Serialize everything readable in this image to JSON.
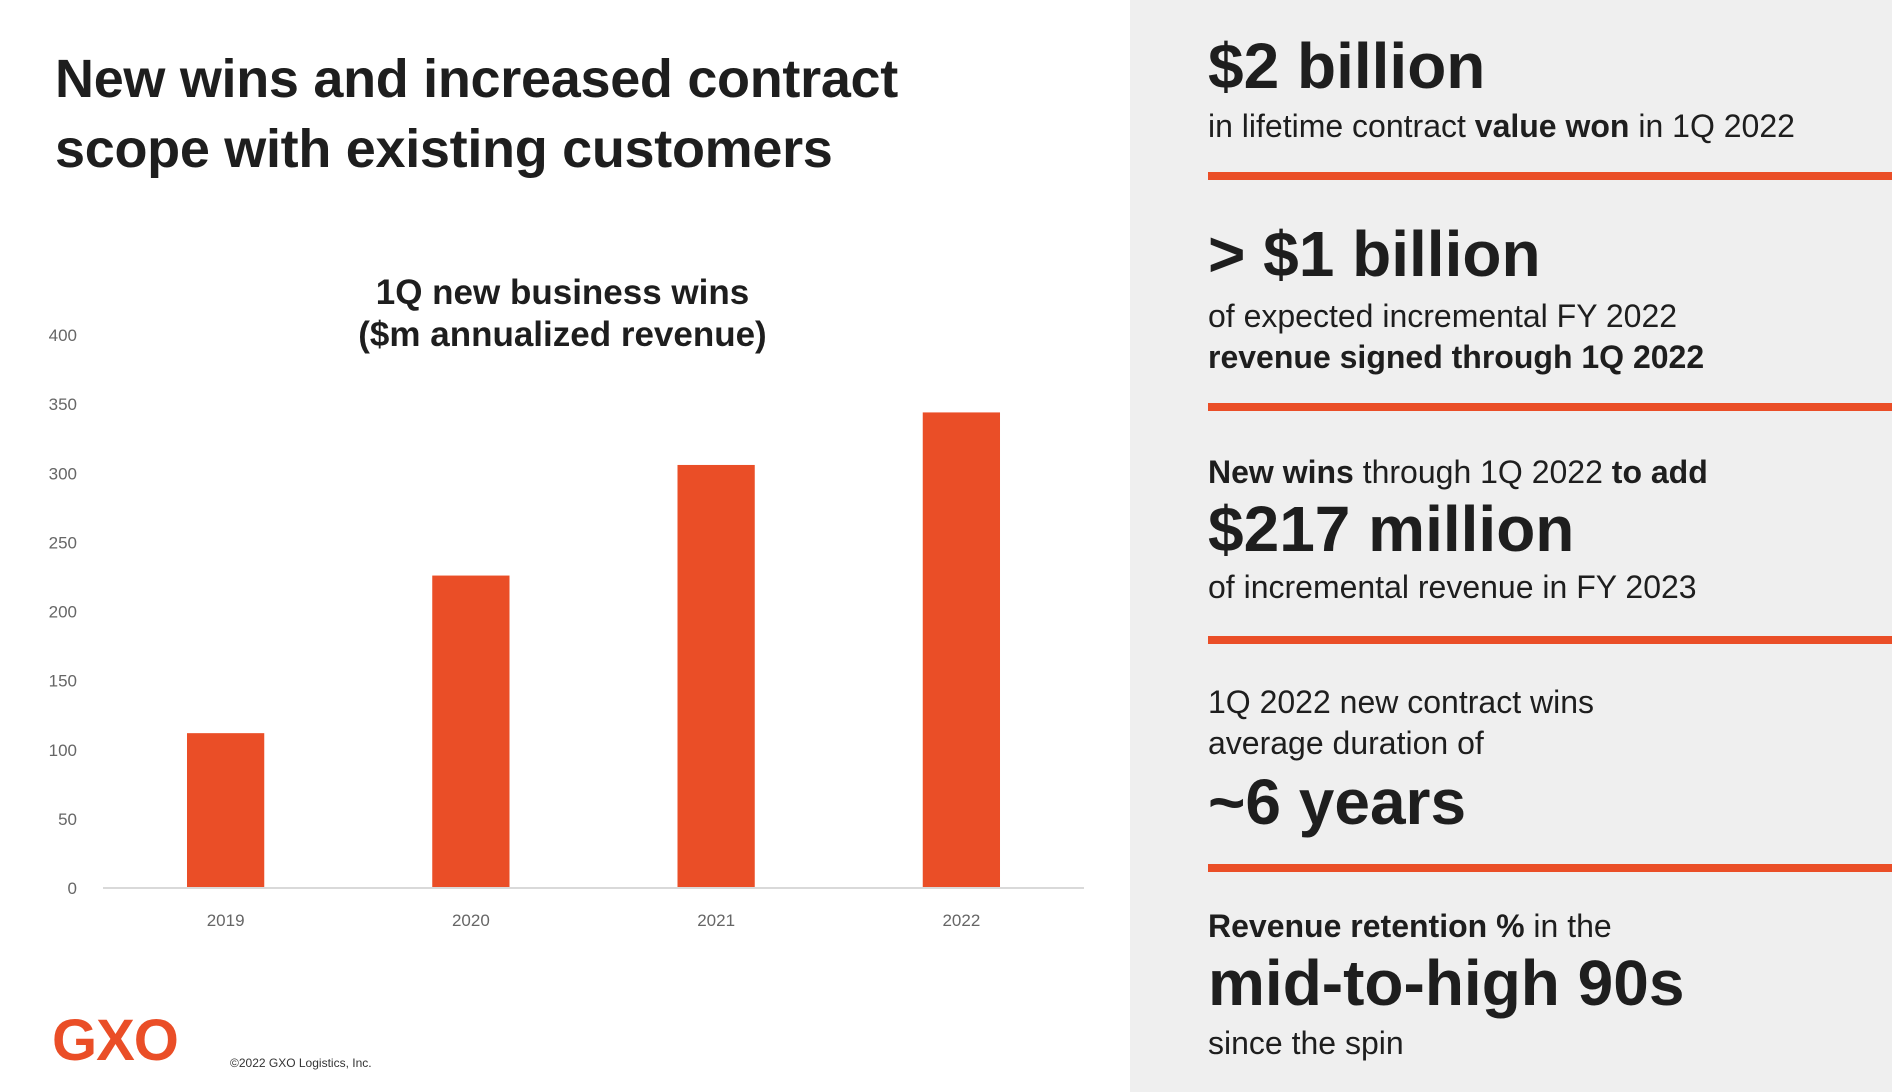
{
  "slide": {
    "title_lines": [
      "New wins and increased contract",
      "scope with existing customers"
    ],
    "logo_text": "GXO",
    "copyright": "©2022 GXO Logistics, Inc.",
    "accent_color": "#ea4e27",
    "panel_color": "#efefef"
  },
  "chart_data": {
    "type": "bar",
    "title": "1Q new business wins ($m annualized revenue)",
    "title_lines": [
      "1Q new business wins",
      "($m annualized revenue)"
    ],
    "categories": [
      "2019",
      "2020",
      "2021",
      "2022"
    ],
    "values": [
      112,
      226,
      306,
      344
    ],
    "xlabel": "",
    "ylabel": "",
    "ylim": [
      0,
      400
    ],
    "yticks": [
      0,
      50,
      100,
      150,
      200,
      250,
      300,
      350,
      400
    ],
    "ytick_labels": [
      "0",
      "50",
      "100",
      "150",
      "200",
      "250",
      "300",
      "350",
      "400"
    ],
    "grid": false,
    "legend": "none",
    "bar_color": "#ea4e27"
  },
  "stats": [
    {
      "headline": "$2 billion",
      "sub": [
        {
          "text": "in lifetime contract ",
          "bold": false
        },
        {
          "text": "value won",
          "bold": true
        },
        {
          "text": " in 1Q 2022",
          "bold": false
        }
      ]
    },
    {
      "headline": "> $1 billion",
      "sub_line1": "of expected incremental FY 2022",
      "sub_line2": "revenue signed through 1Q 2022"
    },
    {
      "pre": [
        {
          "text": "New wins",
          "bold": true
        },
        {
          "text": " through 1Q 2022 ",
          "bold": false
        },
        {
          "text": "to add",
          "bold": true
        }
      ],
      "headline": "$217 million",
      "sub": "of incremental revenue in FY 2023"
    },
    {
      "pre_line1": "1Q 2022 new contract wins",
      "pre_line2": "average duration of",
      "headline": "~6 years"
    },
    {
      "pre": [
        {
          "text": "Revenue retention %",
          "bold": true
        },
        {
          "text": " in the",
          "bold": false
        }
      ],
      "headline": "mid-to-high 90s",
      "sub": "since the spin"
    }
  ]
}
